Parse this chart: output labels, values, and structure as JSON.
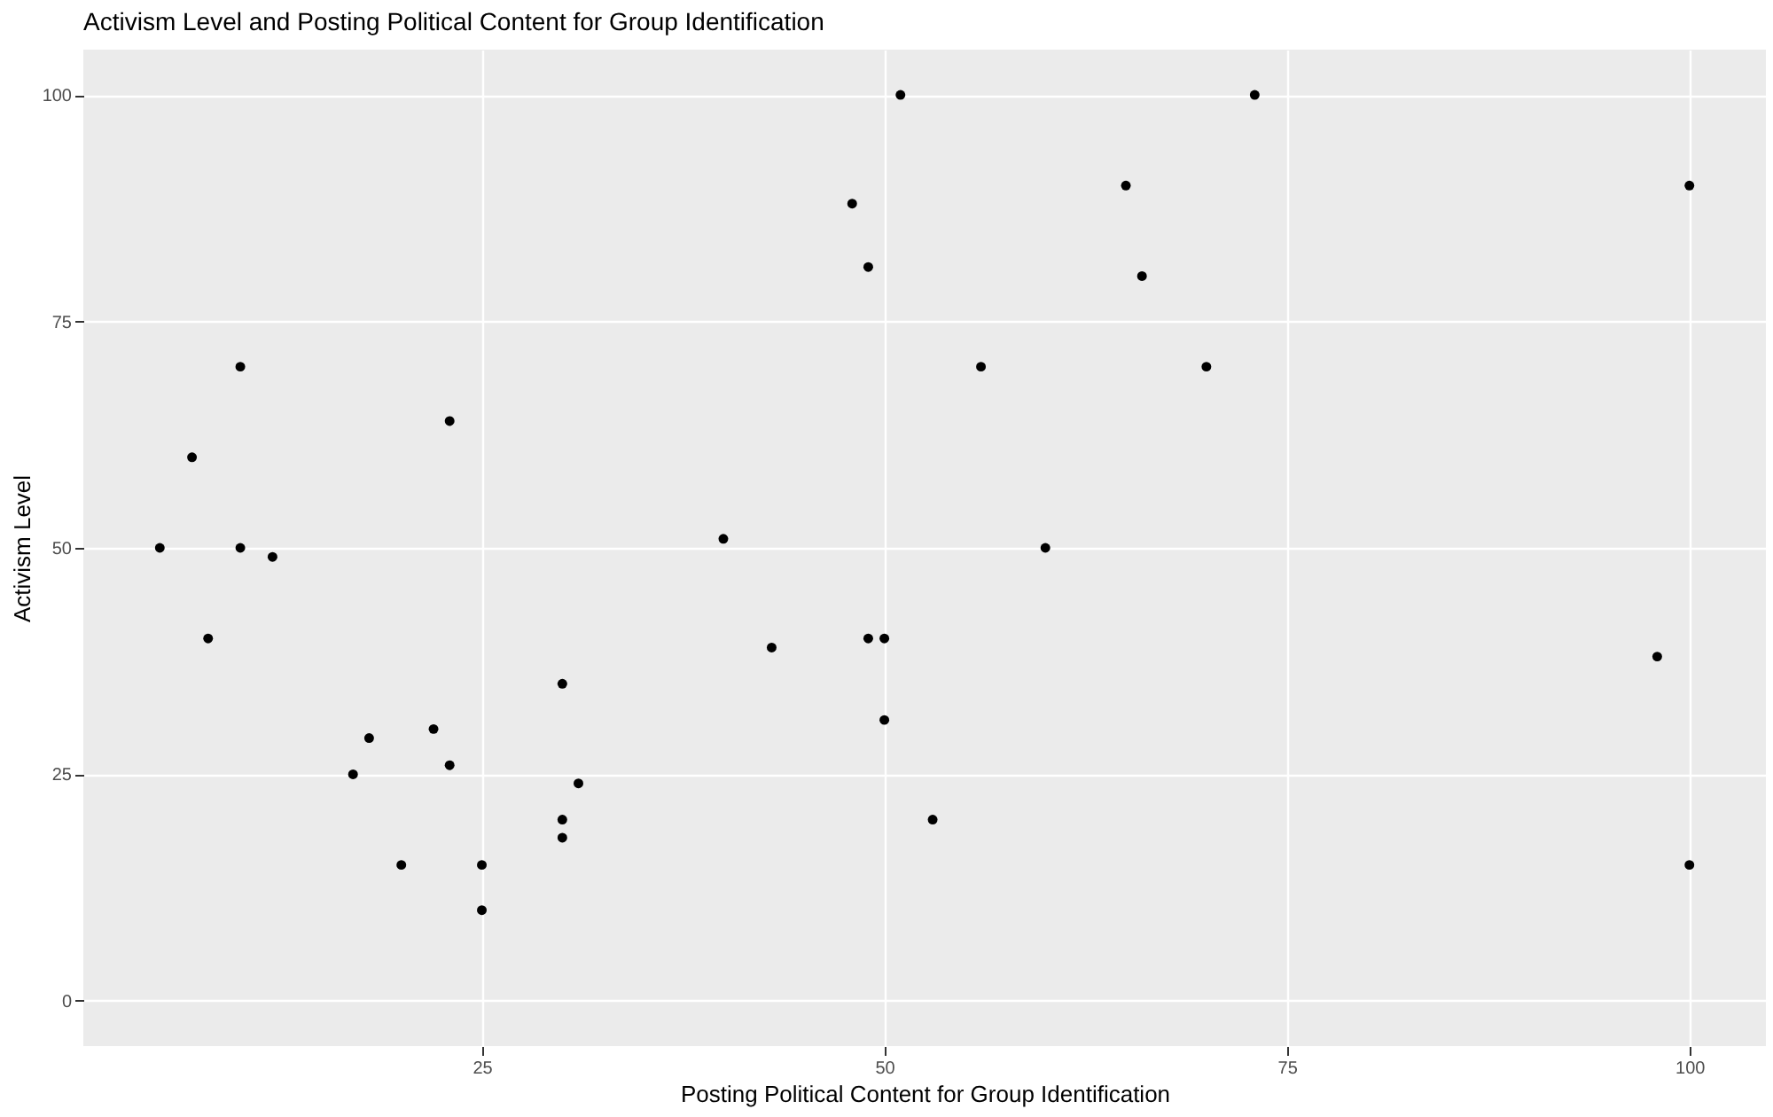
{
  "chart_data": {
    "type": "scatter",
    "title": "Activism Level and Posting Political Content for Group Identification",
    "xlabel": "Posting Political Content for Group Identification",
    "ylabel": "Activism Level",
    "x": [
      5,
      7,
      8,
      10,
      10,
      12,
      17,
      18,
      20,
      22,
      23,
      23,
      25,
      25,
      30,
      30,
      30,
      31,
      40,
      43,
      48,
      49,
      49,
      50,
      50,
      51,
      53,
      56,
      60,
      65,
      66,
      70,
      73,
      98,
      100,
      100
    ],
    "series": [
      {
        "color": "#000000",
        "values": [
          50,
          60,
          40,
          70,
          50,
          49,
          25,
          29,
          15,
          30,
          64,
          26,
          15,
          10,
          35,
          20,
          18,
          24,
          51,
          39,
          88,
          81,
          40,
          40,
          31,
          100,
          20,
          70,
          50,
          90,
          80,
          70,
          100,
          38,
          90,
          15
        ]
      }
    ],
    "xlim": [
      0.25,
      104.75
    ],
    "ylim": [
      -5,
      105
    ],
    "xticks": [
      25,
      50,
      75,
      100
    ],
    "yticks": [
      0,
      25,
      50,
      75,
      100
    ],
    "grid": true,
    "marker": "circle"
  }
}
